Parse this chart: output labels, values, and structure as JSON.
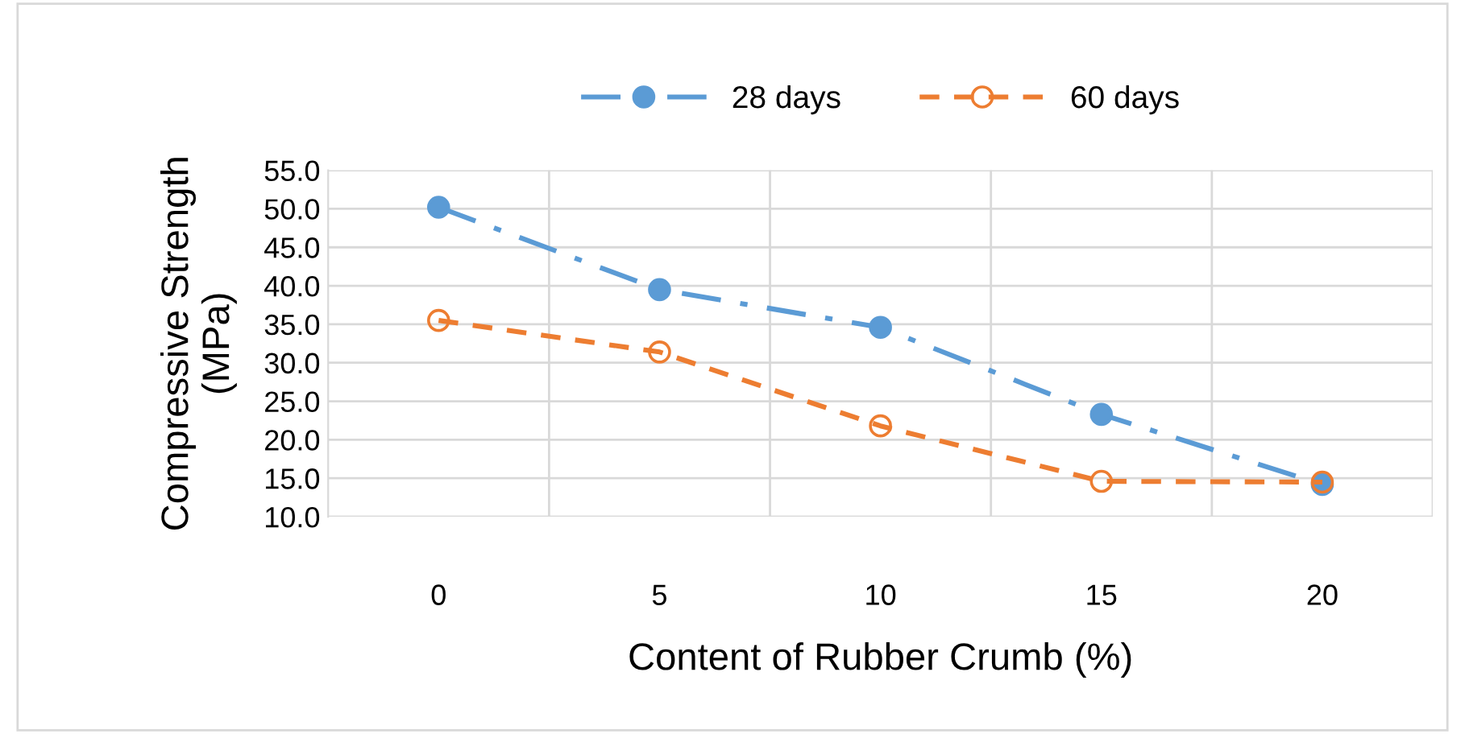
{
  "chart_data": {
    "type": "line",
    "xlabel": "Content of Rubber Crumb (%)",
    "ylabel": "Compressive Strength\n(MPa)",
    "categories": [
      "0",
      "5",
      "10",
      "15",
      "20"
    ],
    "series": [
      {
        "name": "28 days",
        "color": "#5b9bd5",
        "values": [
          50.2,
          39.5,
          34.6,
          23.3,
          14.2
        ],
        "line_style": "dashdot",
        "marker": "circle"
      },
      {
        "name": "60 days",
        "color": "#ed7d31",
        "values": [
          35.5,
          31.4,
          21.8,
          14.6,
          14.5
        ],
        "line_style": "dashed",
        "marker": "circle"
      }
    ],
    "ylim": [
      10,
      55
    ],
    "yticks": [
      {
        "value": 10,
        "label": "10.0"
      },
      {
        "value": 15,
        "label": "15.0"
      },
      {
        "value": 20,
        "label": "20.0"
      },
      {
        "value": 25,
        "label": "25.0"
      },
      {
        "value": 30,
        "label": "30.0"
      },
      {
        "value": 35,
        "label": "35.0"
      },
      {
        "value": 40,
        "label": "40.0"
      },
      {
        "value": 45,
        "label": "45.0"
      },
      {
        "value": 50,
        "label": "50.0"
      },
      {
        "value": 55,
        "label": "55.0"
      }
    ],
    "grid": true,
    "legend": "top"
  }
}
